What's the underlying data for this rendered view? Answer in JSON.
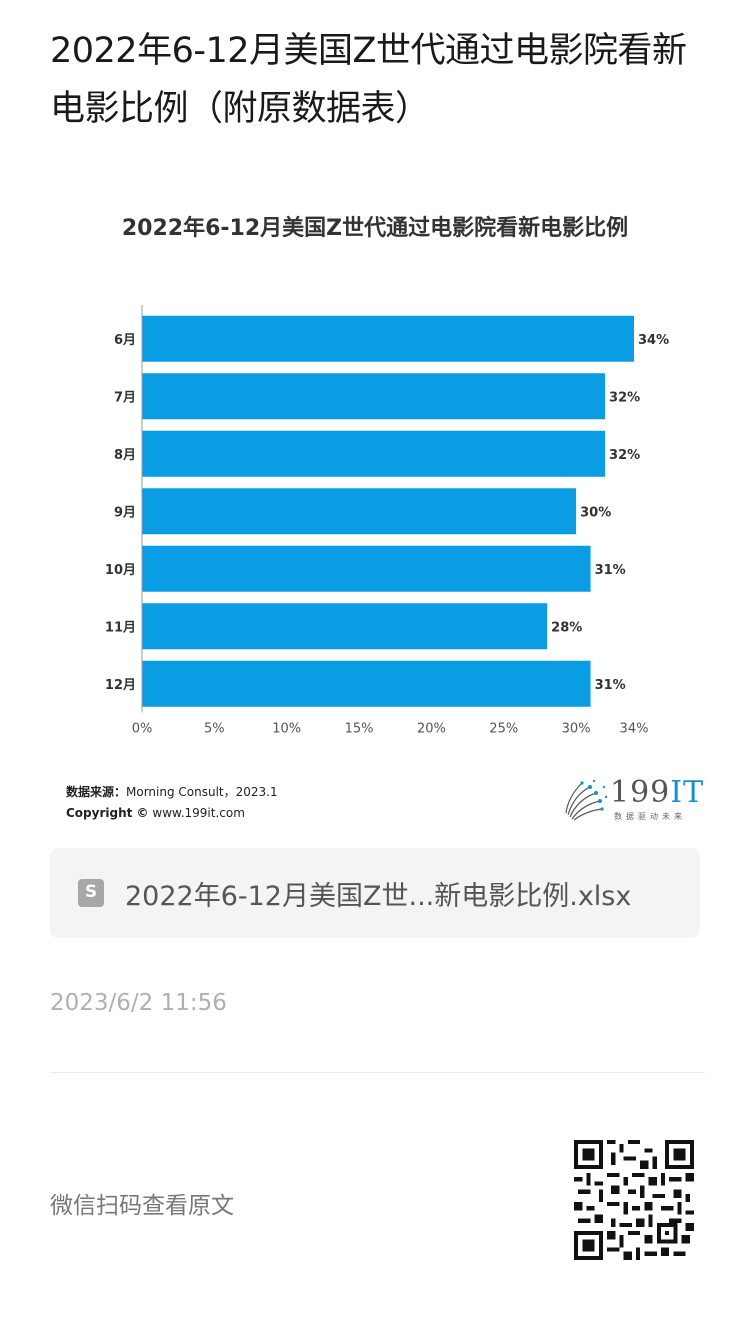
{
  "article": {
    "title": "2022年6-12月美国Z世代通过电影院看新电影比例（附原数据表）"
  },
  "chart_data": {
    "type": "bar",
    "orientation": "horizontal",
    "title": "2022年6-12月美国Z世代通过电影院看新电影比例",
    "categories": [
      "6月",
      "7月",
      "8月",
      "9月",
      "10月",
      "11月",
      "12月"
    ],
    "values": [
      34,
      32,
      32,
      30,
      31,
      28,
      31
    ],
    "value_labels": [
      "34%",
      "32%",
      "32%",
      "30%",
      "31%",
      "28%",
      "31%"
    ],
    "xticks": [
      "0%",
      "5%",
      "10%",
      "15%",
      "20%",
      "25%",
      "30%",
      "34%"
    ],
    "xtick_values": [
      0,
      5,
      10,
      15,
      20,
      25,
      30,
      34
    ],
    "xlim": [
      0,
      34
    ],
    "xlabel": "",
    "ylabel": "",
    "grid": false,
    "bar_color": "#0a9de3"
  },
  "source": {
    "label": "数据来源：",
    "text": "Morning Consult，2023.1",
    "copyright_label": "Copyright ©",
    "copyright_text": "www.199it.com"
  },
  "logo": {
    "number": "199",
    "suffix": "IT",
    "slogan": "数据驱动未来"
  },
  "attachment": {
    "icon_letter": "S",
    "file_name": "2022年6-12月美国Z世...新电影比例.xlsx"
  },
  "timestamp": "2023/6/2 11:56",
  "footer": {
    "scan_text": "微信扫码查看原文"
  }
}
